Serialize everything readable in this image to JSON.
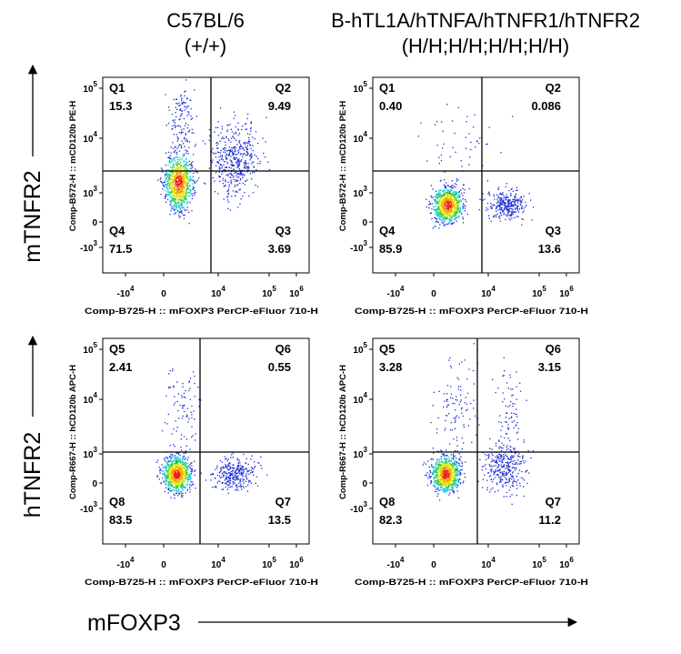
{
  "columns": [
    {
      "line1": "C57BL/6",
      "line2": "(+/+)"
    },
    {
      "line1": "B-hTL1A/hTNFA/hTNFR1/hTNFR2",
      "line2": "(H/H;H/H;H/H;H/H)"
    }
  ],
  "rows": [
    {
      "label": "mTNFR2"
    },
    {
      "label": "hTNFR2"
    }
  ],
  "x_axis_label": "mFOXP3",
  "x_ticks": [
    {
      "base": "-10",
      "exp": "4"
    },
    {
      "base": "0"
    },
    {
      "base": "10",
      "exp": "4"
    },
    {
      "base": "10",
      "exp": "5"
    },
    {
      "base": "10",
      "exp": "6"
    }
  ],
  "y_ticks": [
    {
      "base": "10",
      "exp": "5"
    },
    {
      "base": "10",
      "exp": "4"
    },
    {
      "base": "10",
      "exp": "3"
    },
    {
      "base": "0"
    },
    {
      "base": "-10",
      "exp": "3"
    }
  ],
  "panels": [
    {
      "y_title": "Comp-B572-H :: mCD120b PE-H",
      "x_title": "Comp-B725-H :: mFOXP3 PerCP-eFluor 710-H",
      "quadrants": [
        {
          "name": "Q1",
          "value": "15.3"
        },
        {
          "name": "Q2",
          "value": "9.49"
        },
        {
          "name": "Q4",
          "value": "71.5"
        },
        {
          "name": "Q3",
          "value": "3.69"
        }
      ]
    },
    {
      "y_title": "Comp-B572-H :: mCD120b PE-H",
      "x_title": "Comp-B725-H :: mFOXP3 PerCP-eFluor 710-H",
      "quadrants": [
        {
          "name": "Q1",
          "value": "0.40"
        },
        {
          "name": "Q2",
          "value": "0.086"
        },
        {
          "name": "Q4",
          "value": "85.9"
        },
        {
          "name": "Q3",
          "value": "13.6"
        }
      ]
    },
    {
      "y_title": "Comp-R667-H :: hCD120b APC-H",
      "x_title": "Comp-B725-H :: mFOXP3 PerCP-eFluor 710-H",
      "quadrants": [
        {
          "name": "Q5",
          "value": "2.41"
        },
        {
          "name": "Q6",
          "value": "0.55"
        },
        {
          "name": "Q8",
          "value": "83.5"
        },
        {
          "name": "Q7",
          "value": "13.5"
        }
      ]
    },
    {
      "y_title": "Comp-R667-H :: hCD120b APC-H",
      "x_title": "Comp-B725-H :: mFOXP3 PerCP-eFluor 710-H",
      "quadrants": [
        {
          "name": "Q5",
          "value": "3.28"
        },
        {
          "name": "Q6",
          "value": "3.15"
        },
        {
          "name": "Q8",
          "value": "82.3"
        },
        {
          "name": "Q7",
          "value": "11.2"
        }
      ]
    }
  ]
}
